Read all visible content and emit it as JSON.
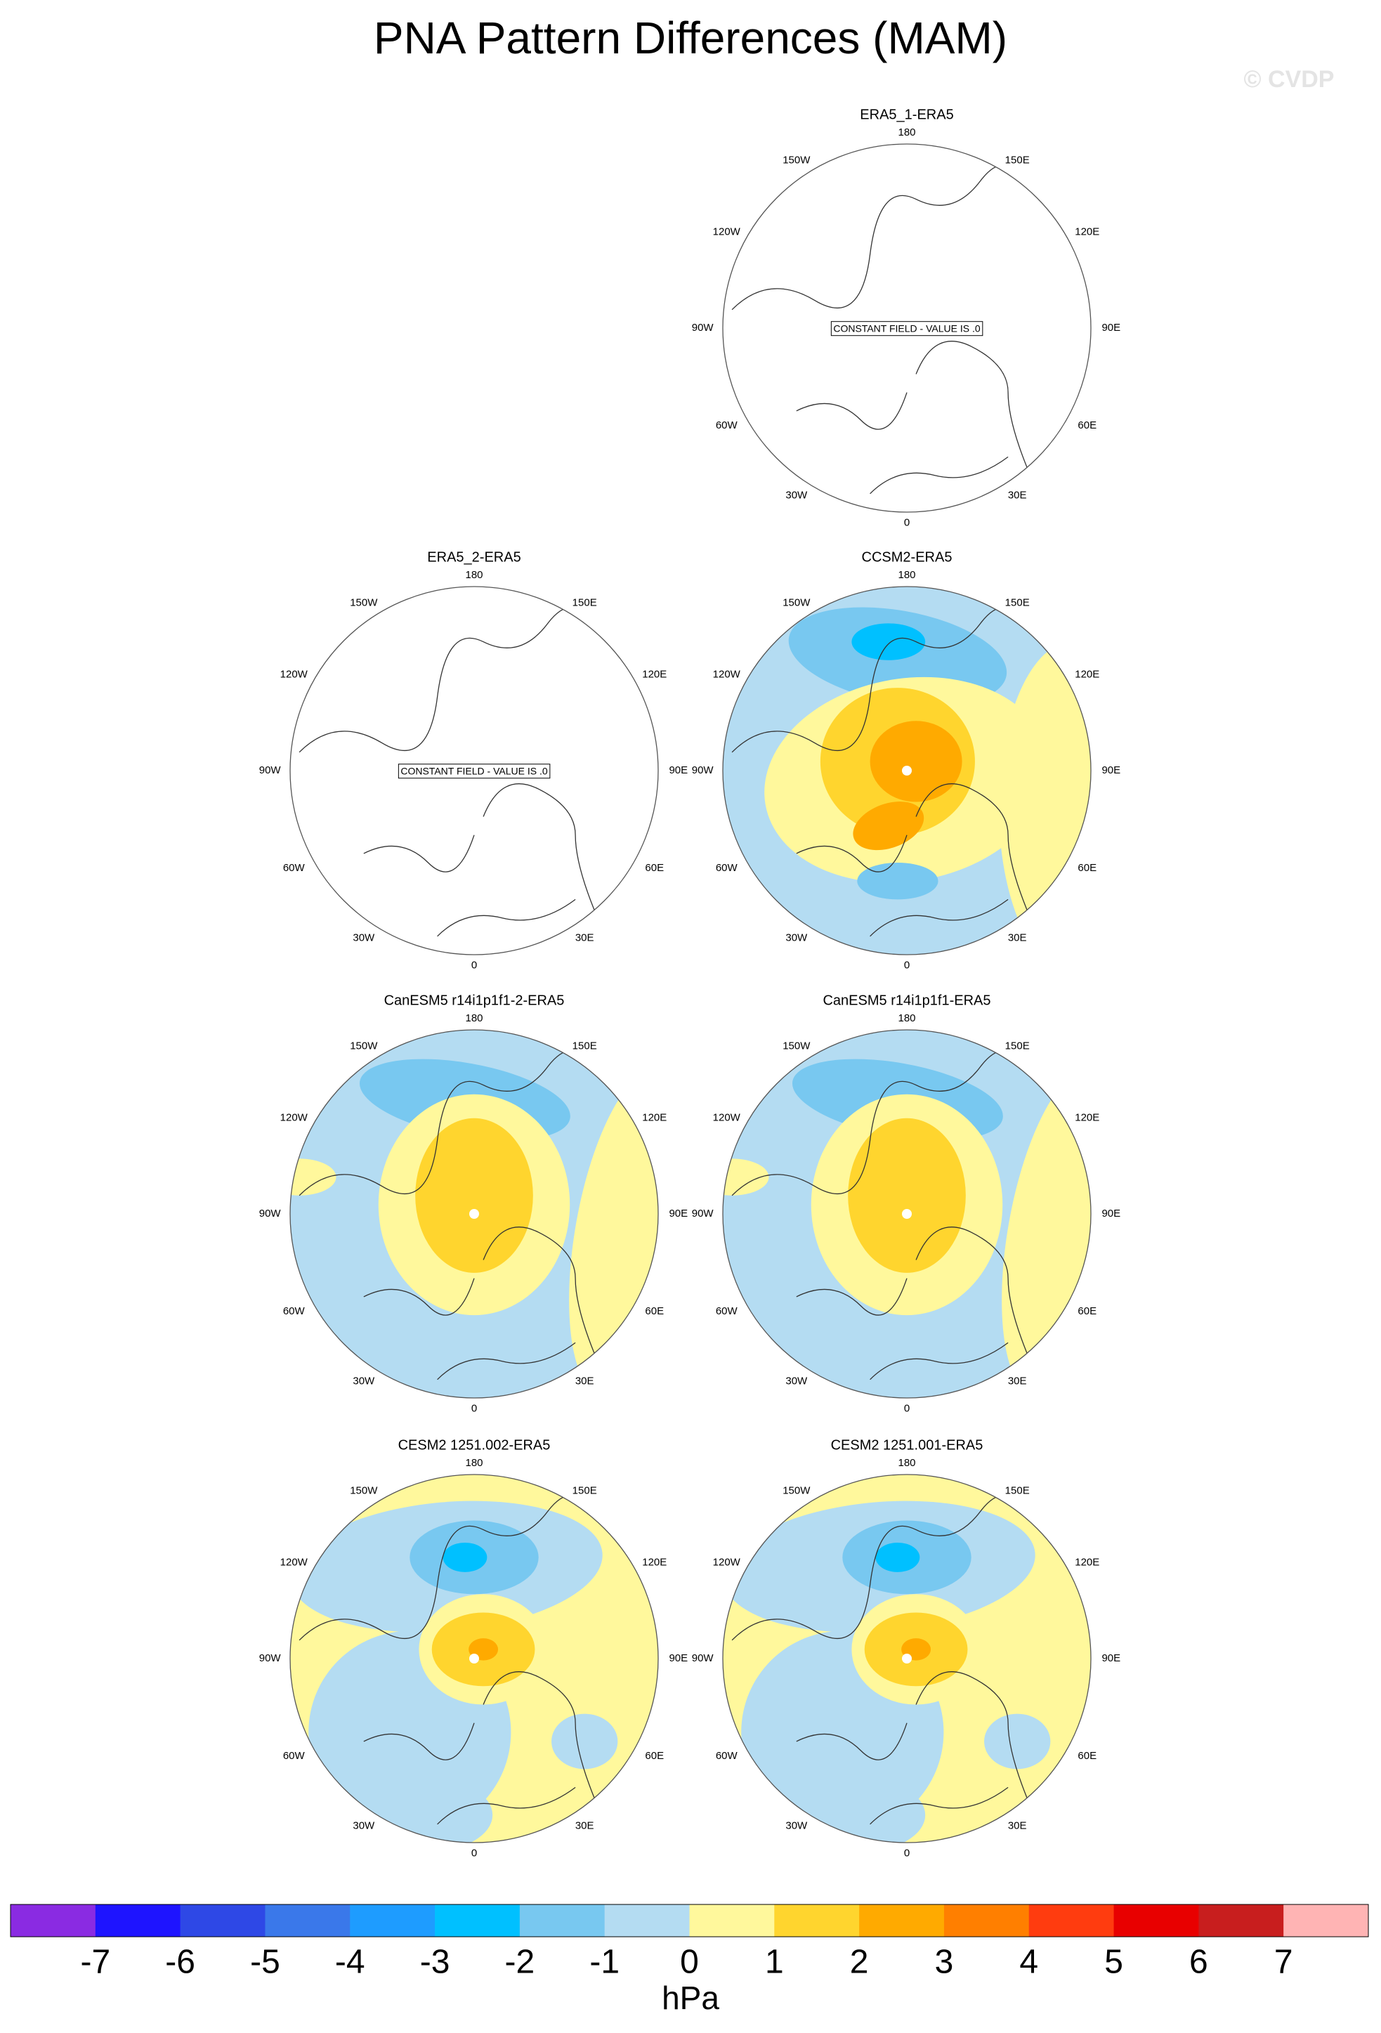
{
  "title": "PNA Pattern Differences (MAM)",
  "watermark": "© CVDP",
  "lon_labels": [
    "180",
    "150W",
    "150E",
    "120W",
    "120E",
    "90W",
    "90E",
    "60W",
    "60E",
    "30W",
    "30E",
    "0"
  ],
  "panels": [
    {
      "title": "ERA5_1-ERA5",
      "note": "CONSTANT FIELD - VALUE IS .0"
    },
    {
      "title": "ERA5_2-ERA5",
      "note": "CONSTANT FIELD - VALUE IS .0"
    },
    {
      "title": "CCSM2-ERA5"
    },
    {
      "title": "CanESM5 r14i1p1f1-2-ERA5"
    },
    {
      "title": "CanESM5 r14i1p1f1-ERA5"
    },
    {
      "title": "CESM2 1251.002-ERA5"
    },
    {
      "title": "CESM2 1251.001-ERA5"
    }
  ],
  "colorbar": {
    "colors": [
      "#8a2be2",
      "#1e14ff",
      "#2e48e6",
      "#3a78ea",
      "#1e9cff",
      "#00c0ff",
      "#78c8f0",
      "#b4dcf2",
      "#fff89c",
      "#ffd52e",
      "#ffaa00",
      "#ff7f00",
      "#ff3c0f",
      "#e80000",
      "#c81e1e",
      "#ffb4b4"
    ],
    "ticks": [
      -7,
      -6,
      -5,
      -4,
      -3,
      -2,
      -1,
      0,
      1,
      2,
      3,
      4,
      5,
      6,
      7
    ],
    "label": "hPa"
  }
}
